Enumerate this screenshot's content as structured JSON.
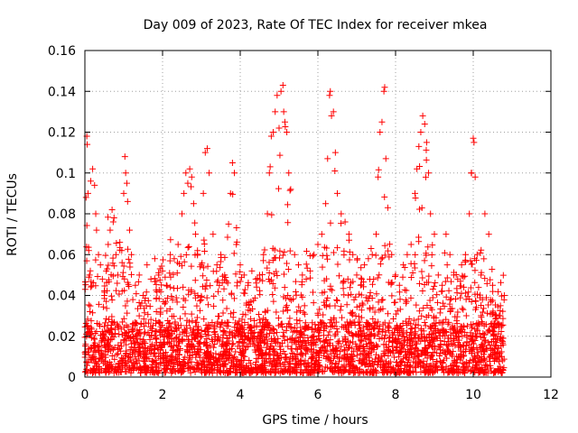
{
  "chart_data": {
    "type": "scatter",
    "title": "Day 009 of 2023, Rate Of TEC Index for receiver mkea",
    "xlabel": "GPS time / hours",
    "ylabel": "ROTI / TECUs",
    "xlim": [
      0,
      12
    ],
    "ylim": [
      0,
      0.16
    ],
    "x_ticks": [
      0,
      2,
      4,
      6,
      8,
      10,
      12
    ],
    "x_tick_labels": [
      "0",
      "2",
      "4",
      "6",
      "8",
      "10",
      "12"
    ],
    "y_ticks": [
      0,
      0.02,
      0.04,
      0.06,
      0.08,
      0.1,
      0.12,
      0.14,
      0.16
    ],
    "y_tick_labels": [
      "0",
      "0.02",
      "0.04",
      "0.06",
      "0.08",
      "0.1",
      "0.12",
      "0.14",
      "0.16"
    ],
    "grid": true,
    "marker": "+",
    "color": "#ff0000",
    "x_range_data": [
      0,
      10.8
    ],
    "series": [
      {
        "name": "ROTI",
        "points": [
          [
            0.0,
            0.012
          ],
          [
            0.03,
            0.088
          ],
          [
            0.05,
            0.118
          ],
          [
            0.06,
            0.114
          ],
          [
            0.08,
            0.09
          ],
          [
            0.1,
            0.062
          ],
          [
            0.12,
            0.05
          ],
          [
            0.15,
            0.096
          ],
          [
            0.2,
            0.102
          ],
          [
            0.25,
            0.094
          ],
          [
            0.28,
            0.08
          ],
          [
            0.3,
            0.072
          ],
          [
            0.35,
            0.06
          ],
          [
            0.4,
            0.055
          ],
          [
            0.45,
            0.048
          ],
          [
            0.5,
            0.04
          ],
          [
            0.55,
            0.052
          ],
          [
            0.6,
            0.065
          ],
          [
            0.65,
            0.072
          ],
          [
            0.7,
            0.082
          ],
          [
            0.75,
            0.078
          ],
          [
            0.8,
            0.06
          ],
          [
            0.85,
            0.05
          ],
          [
            0.9,
            0.066
          ],
          [
            0.95,
            0.062
          ],
          [
            1.0,
            0.09
          ],
          [
            1.03,
            0.108
          ],
          [
            1.05,
            0.1
          ],
          [
            1.08,
            0.095
          ],
          [
            1.1,
            0.086
          ],
          [
            1.15,
            0.072
          ],
          [
            1.2,
            0.06
          ],
          [
            1.3,
            0.045
          ],
          [
            1.4,
            0.05
          ],
          [
            1.5,
            0.04
          ],
          [
            1.6,
            0.055
          ],
          [
            1.7,
            0.048
          ],
          [
            1.8,
            0.058
          ],
          [
            1.9,
            0.05
          ],
          [
            2.0,
            0.052
          ],
          [
            2.1,
            0.045
          ],
          [
            2.2,
            0.06
          ],
          [
            2.3,
            0.058
          ],
          [
            2.4,
            0.065
          ],
          [
            2.5,
            0.08
          ],
          [
            2.55,
            0.09
          ],
          [
            2.6,
            0.1
          ],
          [
            2.65,
            0.095
          ],
          [
            2.7,
            0.102
          ],
          [
            2.75,
            0.098
          ],
          [
            2.8,
            0.085
          ],
          [
            2.85,
            0.07
          ],
          [
            2.9,
            0.062
          ],
          [
            3.0,
            0.055
          ],
          [
            3.05,
            0.09
          ],
          [
            3.1,
            0.11
          ],
          [
            3.15,
            0.112
          ],
          [
            3.2,
            0.1
          ],
          [
            3.3,
            0.07
          ],
          [
            3.4,
            0.055
          ],
          [
            3.5,
            0.06
          ],
          [
            3.6,
            0.05
          ],
          [
            3.7,
            0.075
          ],
          [
            3.75,
            0.09
          ],
          [
            3.8,
            0.105
          ],
          [
            3.85,
            0.1
          ],
          [
            3.9,
            0.065
          ],
          [
            4.0,
            0.055
          ],
          [
            4.1,
            0.05
          ],
          [
            4.2,
            0.045
          ],
          [
            4.3,
            0.052
          ],
          [
            4.4,
            0.048
          ],
          [
            4.5,
            0.05
          ],
          [
            4.6,
            0.06
          ],
          [
            4.7,
            0.08
          ],
          [
            4.75,
            0.1
          ],
          [
            4.8,
            0.118
          ],
          [
            4.85,
            0.12
          ],
          [
            4.9,
            0.13
          ],
          [
            4.95,
            0.138
          ],
          [
            5.0,
            0.122
          ],
          [
            5.05,
            0.14
          ],
          [
            5.1,
            0.143
          ],
          [
            5.12,
            0.13
          ],
          [
            5.15,
            0.125
          ],
          [
            5.2,
            0.12
          ],
          [
            5.25,
            0.1
          ],
          [
            5.3,
            0.092
          ],
          [
            5.4,
            0.06
          ],
          [
            5.5,
            0.055
          ],
          [
            5.6,
            0.05
          ],
          [
            5.7,
            0.048
          ],
          [
            5.8,
            0.052
          ],
          [
            5.9,
            0.06
          ],
          [
            6.0,
            0.065
          ],
          [
            6.1,
            0.07
          ],
          [
            6.2,
            0.085
          ],
          [
            6.25,
            0.107
          ],
          [
            6.3,
            0.138
          ],
          [
            6.32,
            0.14
          ],
          [
            6.35,
            0.128
          ],
          [
            6.4,
            0.13
          ],
          [
            6.45,
            0.11
          ],
          [
            6.5,
            0.09
          ],
          [
            6.6,
            0.08
          ],
          [
            6.7,
            0.076
          ],
          [
            6.8,
            0.07
          ],
          [
            6.9,
            0.06
          ],
          [
            7.0,
            0.05
          ],
          [
            7.1,
            0.045
          ],
          [
            7.2,
            0.055
          ],
          [
            7.3,
            0.058
          ],
          [
            7.4,
            0.06
          ],
          [
            7.5,
            0.07
          ],
          [
            7.55,
            0.098
          ],
          [
            7.6,
            0.12
          ],
          [
            7.65,
            0.125
          ],
          [
            7.7,
            0.14
          ],
          [
            7.72,
            0.142
          ],
          [
            7.75,
            0.107
          ],
          [
            7.8,
            0.083
          ],
          [
            7.9,
            0.06
          ],
          [
            8.0,
            0.05
          ],
          [
            8.1,
            0.045
          ],
          [
            8.2,
            0.055
          ],
          [
            8.3,
            0.06
          ],
          [
            8.4,
            0.065
          ],
          [
            8.5,
            0.09
          ],
          [
            8.55,
            0.102
          ],
          [
            8.6,
            0.113
          ],
          [
            8.65,
            0.12
          ],
          [
            8.7,
            0.128
          ],
          [
            8.75,
            0.124
          ],
          [
            8.8,
            0.115
          ],
          [
            8.85,
            0.1
          ],
          [
            8.9,
            0.08
          ],
          [
            9.0,
            0.07
          ],
          [
            9.1,
            0.05
          ],
          [
            9.2,
            0.045
          ],
          [
            9.3,
            0.07
          ],
          [
            9.4,
            0.06
          ],
          [
            9.5,
            0.05
          ],
          [
            9.6,
            0.048
          ],
          [
            9.7,
            0.055
          ],
          [
            9.8,
            0.06
          ],
          [
            9.9,
            0.08
          ],
          [
            9.95,
            0.1
          ],
          [
            10.0,
            0.117
          ],
          [
            10.02,
            0.115
          ],
          [
            10.05,
            0.098
          ],
          [
            10.1,
            0.06
          ],
          [
            10.2,
            0.05
          ],
          [
            10.3,
            0.08
          ],
          [
            10.4,
            0.07
          ],
          [
            10.5,
            0.045
          ],
          [
            10.6,
            0.03
          ],
          [
            10.7,
            0.035
          ],
          [
            10.8,
            0.04
          ]
        ]
      }
    ]
  }
}
